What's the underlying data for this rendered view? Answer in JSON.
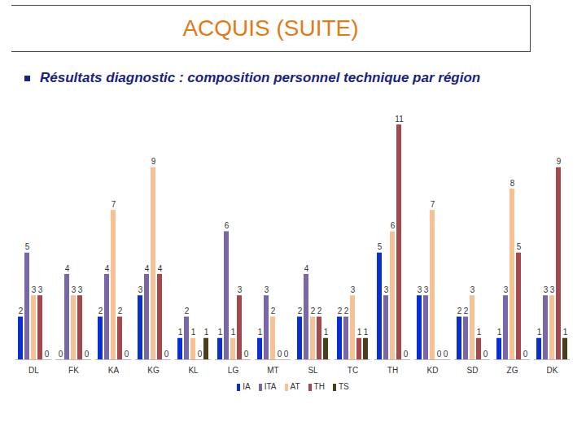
{
  "chart_data": {
    "type": "bar",
    "title": "ACQUIS (SUITE)",
    "subtitle": "Résultats diagnostic : composition personnel technique par région",
    "categories": [
      "DL",
      "FK",
      "KA",
      "KG",
      "KL",
      "LG",
      "MT",
      "SL",
      "TC",
      "TH",
      "KD",
      "SD",
      "ZG",
      "DK"
    ],
    "series": [
      {
        "name": "IA",
        "color": "#0a2fd1",
        "values": [
          2,
          0,
          2,
          3,
          1,
          1,
          1,
          2,
          2,
          5,
          3,
          2,
          1,
          1
        ]
      },
      {
        "name": "ITA",
        "color": "#7a67a8",
        "values": [
          5,
          4,
          4,
          4,
          2,
          6,
          3,
          4,
          2,
          3,
          3,
          2,
          3,
          3
        ]
      },
      {
        "name": "AT",
        "color": "#f5c195",
        "values": [
          3,
          3,
          7,
          9,
          1,
          1,
          2,
          2,
          3,
          6,
          7,
          3,
          8,
          3
        ]
      },
      {
        "name": "TH",
        "color": "#a5484e",
        "values": [
          3,
          3,
          2,
          4,
          0,
          3,
          0,
          2,
          1,
          11,
          0,
          1,
          5,
          9
        ]
      },
      {
        "name": "TS",
        "color": "#4a3f1c",
        "values": [
          0,
          0,
          0,
          0,
          1,
          0,
          0,
          1,
          1,
          0,
          0,
          0,
          0,
          1
        ]
      }
    ],
    "ylim": [
      0,
      11.5
    ],
    "tick_labels": "x",
    "data_labels": true,
    "grid": false,
    "legend": "bottom"
  }
}
